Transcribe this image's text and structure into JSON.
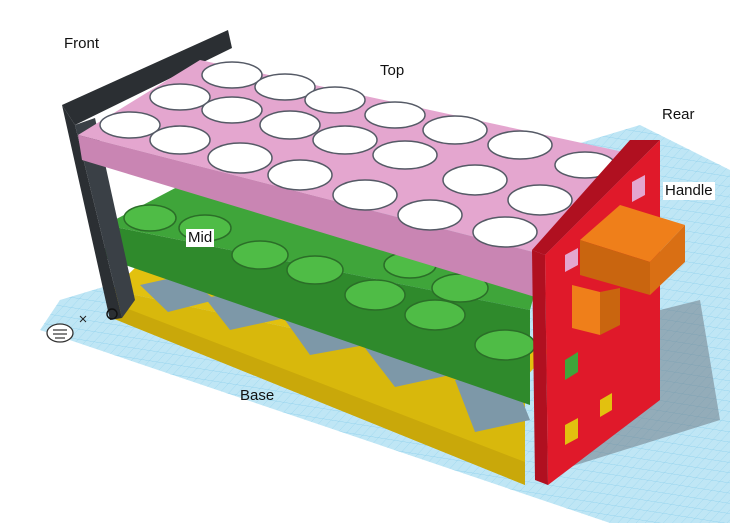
{
  "labels": {
    "front": "Front",
    "top": "Top",
    "rear": "Rear",
    "handle": "Handle",
    "mid": "Mid",
    "base": "Base"
  },
  "colors": {
    "workplane": "#bfe6f5",
    "grid": "#8fd0ec",
    "front_frame": "#2b2f33",
    "top_tray": "#e4a6cf",
    "top_tray_side": "#c985b3",
    "mid_tray": "#3fa53a",
    "mid_tray_side": "#2f8a2c",
    "base": "#e2c10f",
    "base_side": "#c9a80a",
    "rear_panel": "#e0192a",
    "rear_panel_side": "#b01020",
    "handle": "#ef7f1a",
    "handle_side": "#c9650f"
  },
  "icons": [
    "home-view-icon",
    "axis-x-marker"
  ]
}
